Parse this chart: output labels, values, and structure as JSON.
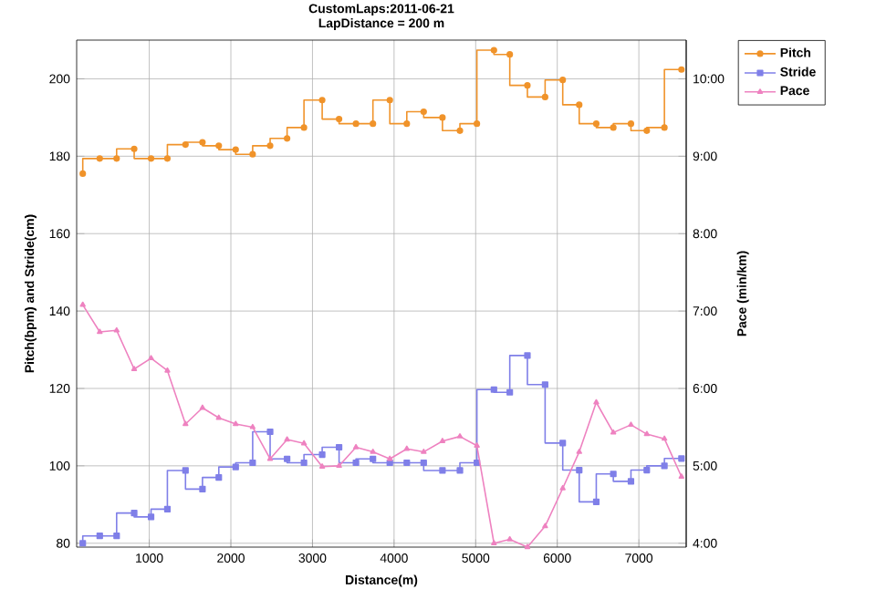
{
  "chart_data": {
    "type": "line",
    "title": "CustomLaps:2011-06-21",
    "subtitle": "LapDistance = 200 m",
    "xlabel": "Distance(m)",
    "ylabel": "Pitch(bpm) and Stride(cm)",
    "y2label": "Pace (min/km)",
    "x": [
      185,
      393,
      600,
      815,
      1022,
      1222,
      1444,
      1652,
      1852,
      2059,
      2267,
      2481,
      2689,
      2896,
      3119,
      3326,
      3533,
      3741,
      3948,
      4156,
      4363,
      4593,
      4807,
      5015,
      5224,
      5418,
      5634,
      5851,
      6067,
      6269,
      6478,
      6687,
      6903,
      7097,
      7313,
      7522
    ],
    "series": [
      {
        "name": "Pitch",
        "type": "step",
        "marker": "circle",
        "color": "#f0932a",
        "values": [
          175.5,
          179.4,
          179.4,
          181.9,
          179.4,
          179.4,
          183.0,
          183.6,
          182.7,
          181.7,
          180.5,
          182.7,
          184.6,
          187.4,
          194.5,
          189.6,
          188.4,
          188.4,
          194.5,
          188.4,
          191.5,
          190,
          186.6,
          188.4,
          207.4,
          206.3,
          198.3,
          195.3,
          199.7,
          193.3,
          188.4,
          187.4,
          188.4,
          186.6,
          187.4,
          202.4
        ]
      },
      {
        "name": "Stride",
        "type": "step",
        "marker": "square",
        "color": "#7f7fe8",
        "values": [
          80,
          81.9,
          81.9,
          87.8,
          86.8,
          88.8,
          98.8,
          94.0,
          97.0,
          99.7,
          100.8,
          108.8,
          101.8,
          100.8,
          102.9,
          104.8,
          100.8,
          101.8,
          100.8,
          100.8,
          100.8,
          98.8,
          98.8,
          100.8,
          119.7,
          119,
          128.5,
          121,
          105.9,
          98.9,
          90.7,
          97.9,
          96,
          98.9,
          100,
          101.9
        ]
      },
      {
        "name": "Pace",
        "type": "line",
        "marker": "triangle",
        "axis": "y2",
        "color": "#ee82c0",
        "values": [
          7.08,
          6.73,
          6.75,
          6.25,
          6.39,
          6.23,
          5.54,
          5.75,
          5.62,
          5.54,
          5.5,
          5.09,
          5.34,
          5.29,
          4.99,
          5.0,
          5.24,
          5.18,
          5.09,
          5.22,
          5.18,
          5.32,
          5.38,
          5.26,
          4.0,
          4.05,
          3.95,
          4.22,
          4.71,
          5.18,
          5.82,
          5.43,
          5.53,
          5.41,
          5.35,
          4.86
        ]
      }
    ],
    "xlim": [
      110,
      7580
    ],
    "xticks": [
      1000,
      2000,
      3000,
      4000,
      5000,
      6000,
      7000
    ],
    "ylim": [
      79,
      210
    ],
    "yticks": [
      80,
      100,
      120,
      140,
      160,
      180,
      200
    ],
    "y2lim": [
      3.95,
      10.5
    ],
    "y2ticks": [
      {
        "value": 4,
        "label": "4:00"
      },
      {
        "value": 5,
        "label": "5:00"
      },
      {
        "value": 6,
        "label": "6:00"
      },
      {
        "value": 7,
        "label": "7:00"
      },
      {
        "value": 8,
        "label": "8:00"
      },
      {
        "value": 9,
        "label": "9:00"
      },
      {
        "value": 10,
        "label": "10:00"
      }
    ],
    "grid": true,
    "legend": "right"
  }
}
